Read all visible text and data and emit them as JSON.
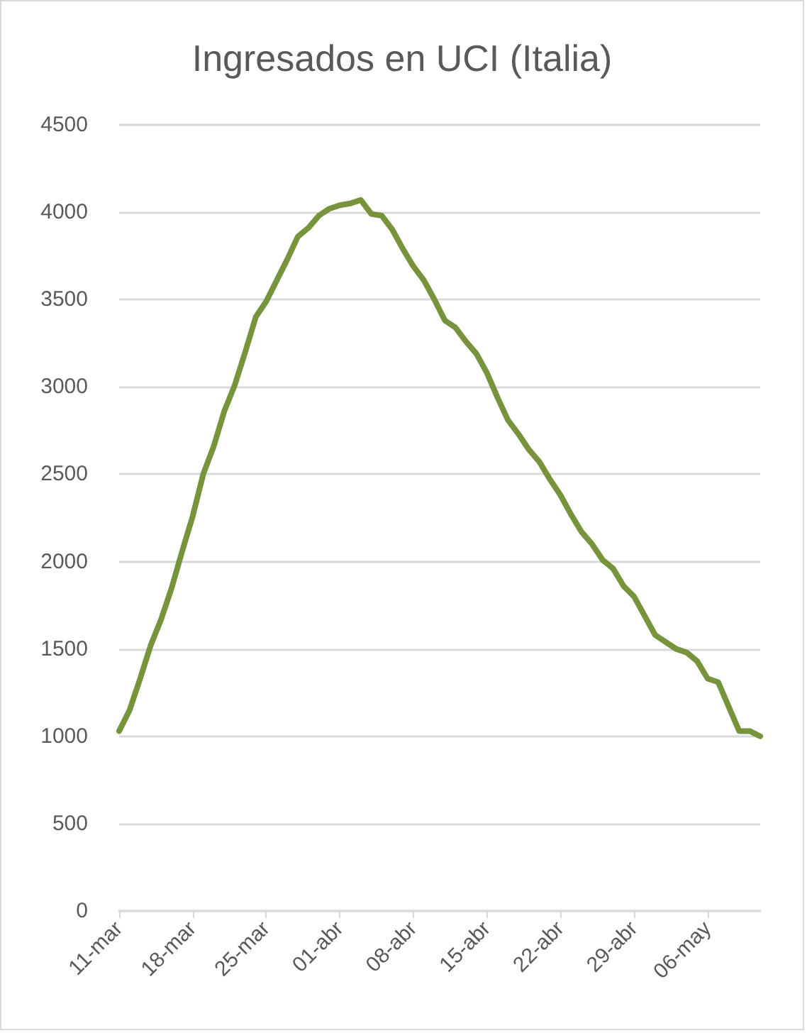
{
  "chart_data": {
    "type": "line",
    "title": "Ingresados en UCI (Italia)",
    "categories": [
      "11-mar",
      null,
      null,
      null,
      null,
      null,
      null,
      "18-mar",
      null,
      null,
      null,
      null,
      null,
      null,
      "25-mar",
      null,
      null,
      null,
      null,
      null,
      null,
      "01-abr",
      null,
      null,
      null,
      null,
      null,
      null,
      "08-abr",
      null,
      null,
      null,
      null,
      null,
      null,
      "15-abr",
      null,
      null,
      null,
      null,
      null,
      null,
      "22-abr",
      null,
      null,
      null,
      null,
      null,
      null,
      "29-abr",
      null,
      null,
      null,
      null,
      null,
      null,
      "06-may",
      null,
      null,
      null,
      null,
      null
    ],
    "series": [
      {
        "color": "#77933c",
        "values": [
          1030,
          1150,
          1330,
          1520,
          1670,
          1850,
          2060,
          2260,
          2500,
          2660,
          2860,
          3010,
          3200,
          3400,
          3490,
          3610,
          3730,
          3860,
          3910,
          3980,
          4020,
          4040,
          4050,
          4070,
          3990,
          3980,
          3900,
          3790,
          3690,
          3610,
          3500,
          3380,
          3340,
          3260,
          3190,
          3080,
          2940,
          2810,
          2730,
          2640,
          2570,
          2470,
          2380,
          2270,
          2170,
          2100,
          2010,
          1960,
          1860,
          1800,
          1690,
          1580,
          1540,
          1500,
          1480,
          1430,
          1330,
          1310,
          1170,
          1030,
          1030,
          1000
        ]
      }
    ],
    "ylim": [
      0,
      4500
    ],
    "yticks": [
      0,
      500,
      1000,
      1500,
      2000,
      2500,
      3000,
      3500,
      4000,
      4500
    ],
    "grid": "y",
    "marker": "none",
    "line_style": "solid"
  }
}
